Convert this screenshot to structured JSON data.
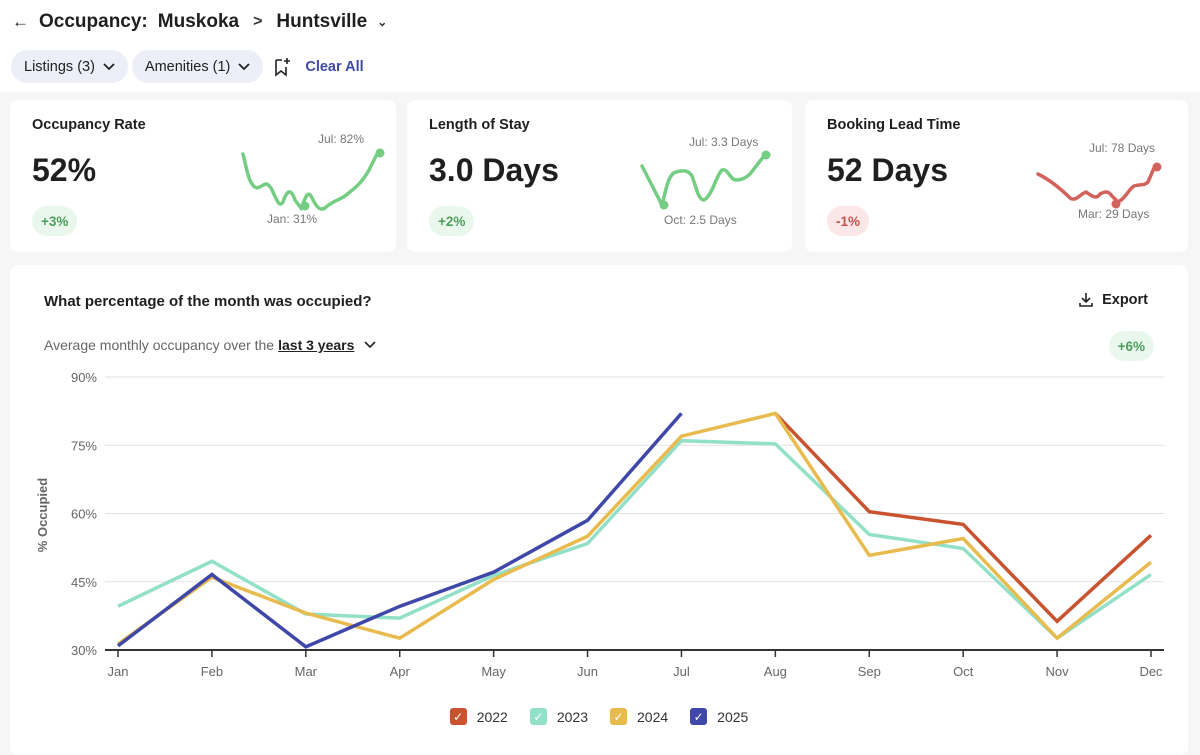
{
  "header": {
    "back_icon": "arrow-left-icon",
    "title": "Occupancy:",
    "region": "Muskoka",
    "separator": ">",
    "city": "Huntsville"
  },
  "filters": {
    "listings": "Listings (3)",
    "amenities": "Amenities (1)",
    "clear": "Clear All"
  },
  "cards": [
    {
      "title": "Occupancy Rate",
      "value": "52%",
      "change": "+3%",
      "max_label": "Jul: 82%",
      "min_label": "Jan: 31%",
      "color": "#74cd82"
    },
    {
      "title": "Length of Stay",
      "value": "3.0 Days",
      "change": "+2%",
      "max_label": "Jul: 3.3 Days",
      "min_label": "Oct: 2.5 Days",
      "color": "#74cd82"
    },
    {
      "title": "Booking Lead Time",
      "value": "52 Days",
      "change": "-1%",
      "max_label": "Jul: 78 Days",
      "min_label": "Mar: 29 Days",
      "color": "#d2625c"
    }
  ],
  "chart_section": {
    "title": "What percentage of the month was occupied?",
    "export": "Export",
    "subtitle": "Average monthly occupancy over the",
    "period": "last 3 years",
    "change": "+6%"
  },
  "chart_data": {
    "type": "line",
    "ylabel": "% Occupied",
    "xlabel": "",
    "ylim": [
      30,
      90
    ],
    "yticks": [
      30,
      45,
      60,
      75,
      90
    ],
    "ytick_labels": [
      "30%",
      "45%",
      "60%",
      "75%",
      "90%"
    ],
    "categories": [
      "Jan",
      "Feb",
      "Mar",
      "Apr",
      "May",
      "Jun",
      "Jul",
      "Aug",
      "Sep",
      "Oct",
      "Nov",
      "Dec"
    ],
    "grid": true,
    "legend": "bottom-center",
    "series": [
      {
        "name": "2022",
        "color": "#c9522f",
        "values": [
          null,
          null,
          null,
          null,
          null,
          null,
          null,
          82,
          60.4,
          57.6,
          36.3,
          55.2
        ]
      },
      {
        "name": "2023",
        "color": "#93e0c8",
        "values": [
          39.6,
          49.5,
          37.9,
          37,
          46.4,
          53.4,
          76,
          75.3,
          55.4,
          52.3,
          32.6,
          46.6
        ]
      },
      {
        "name": "2024",
        "color": "#e8bb4f",
        "values": [
          31.3,
          46,
          38.1,
          32.6,
          45.5,
          55,
          77,
          82,
          50.8,
          54.5,
          32.6,
          49.3
        ]
      },
      {
        "name": "2025",
        "color": "#3f47a8",
        "values": [
          30.9,
          46.6,
          30.7,
          39.6,
          47.1,
          58.5,
          82,
          null,
          null,
          null,
          null,
          null
        ]
      }
    ]
  }
}
